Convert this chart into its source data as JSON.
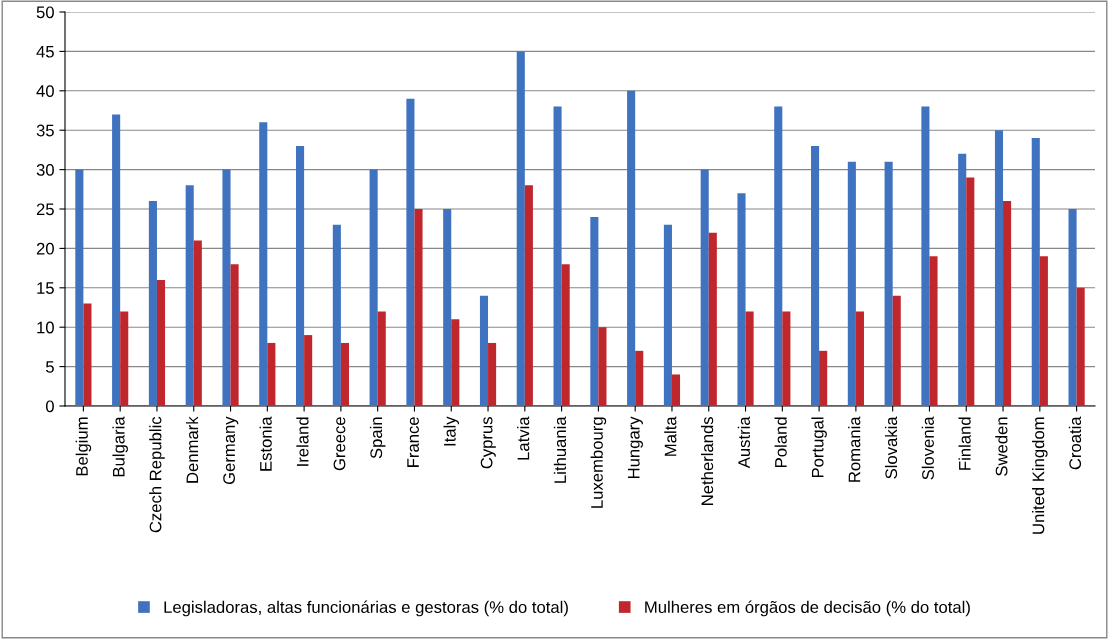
{
  "chart_data": {
    "type": "bar",
    "categories": [
      "Belgium",
      "Bulgaria",
      "Czech Republic",
      "Denmark",
      "Germany",
      "Estonia",
      "Ireland",
      "Greece",
      "Spain",
      "France",
      "Italy",
      "Cyprus",
      "Latvia",
      "Lithuania",
      "Luxembourg",
      "Hungary",
      "Malta",
      "Netherlands",
      "Austria",
      "Poland",
      "Portugal",
      "Romania",
      "Slovakia",
      "Slovenia",
      "Finland",
      "Sweden",
      "United Kingdom",
      "Croatia"
    ],
    "series": [
      {
        "name": "Legisladoras, altas funcionárias e gestoras (% do total)",
        "color": "#3f73c0",
        "values": [
          30,
          37,
          26,
          28,
          30,
          36,
          33,
          23,
          30,
          39,
          25,
          14,
          45,
          38,
          24,
          40,
          23,
          30,
          27,
          38,
          33,
          31,
          31,
          38,
          32,
          35,
          34,
          25
        ]
      },
      {
        "name": "Mulheres em órgãos de decisão (% do total)",
        "color": "#c0272d",
        "values": [
          13,
          12,
          16,
          21,
          18,
          8,
          9,
          8,
          12,
          25,
          11,
          8,
          28,
          18,
          10,
          7,
          4,
          22,
          12,
          12,
          7,
          12,
          14,
          19,
          29,
          26,
          19,
          15
        ]
      }
    ],
    "ylim": [
      0,
      50
    ],
    "yticks": [
      0,
      5,
      10,
      15,
      20,
      25,
      30,
      35,
      40,
      45,
      50
    ],
    "grid": "y",
    "legend": "bottom"
  }
}
